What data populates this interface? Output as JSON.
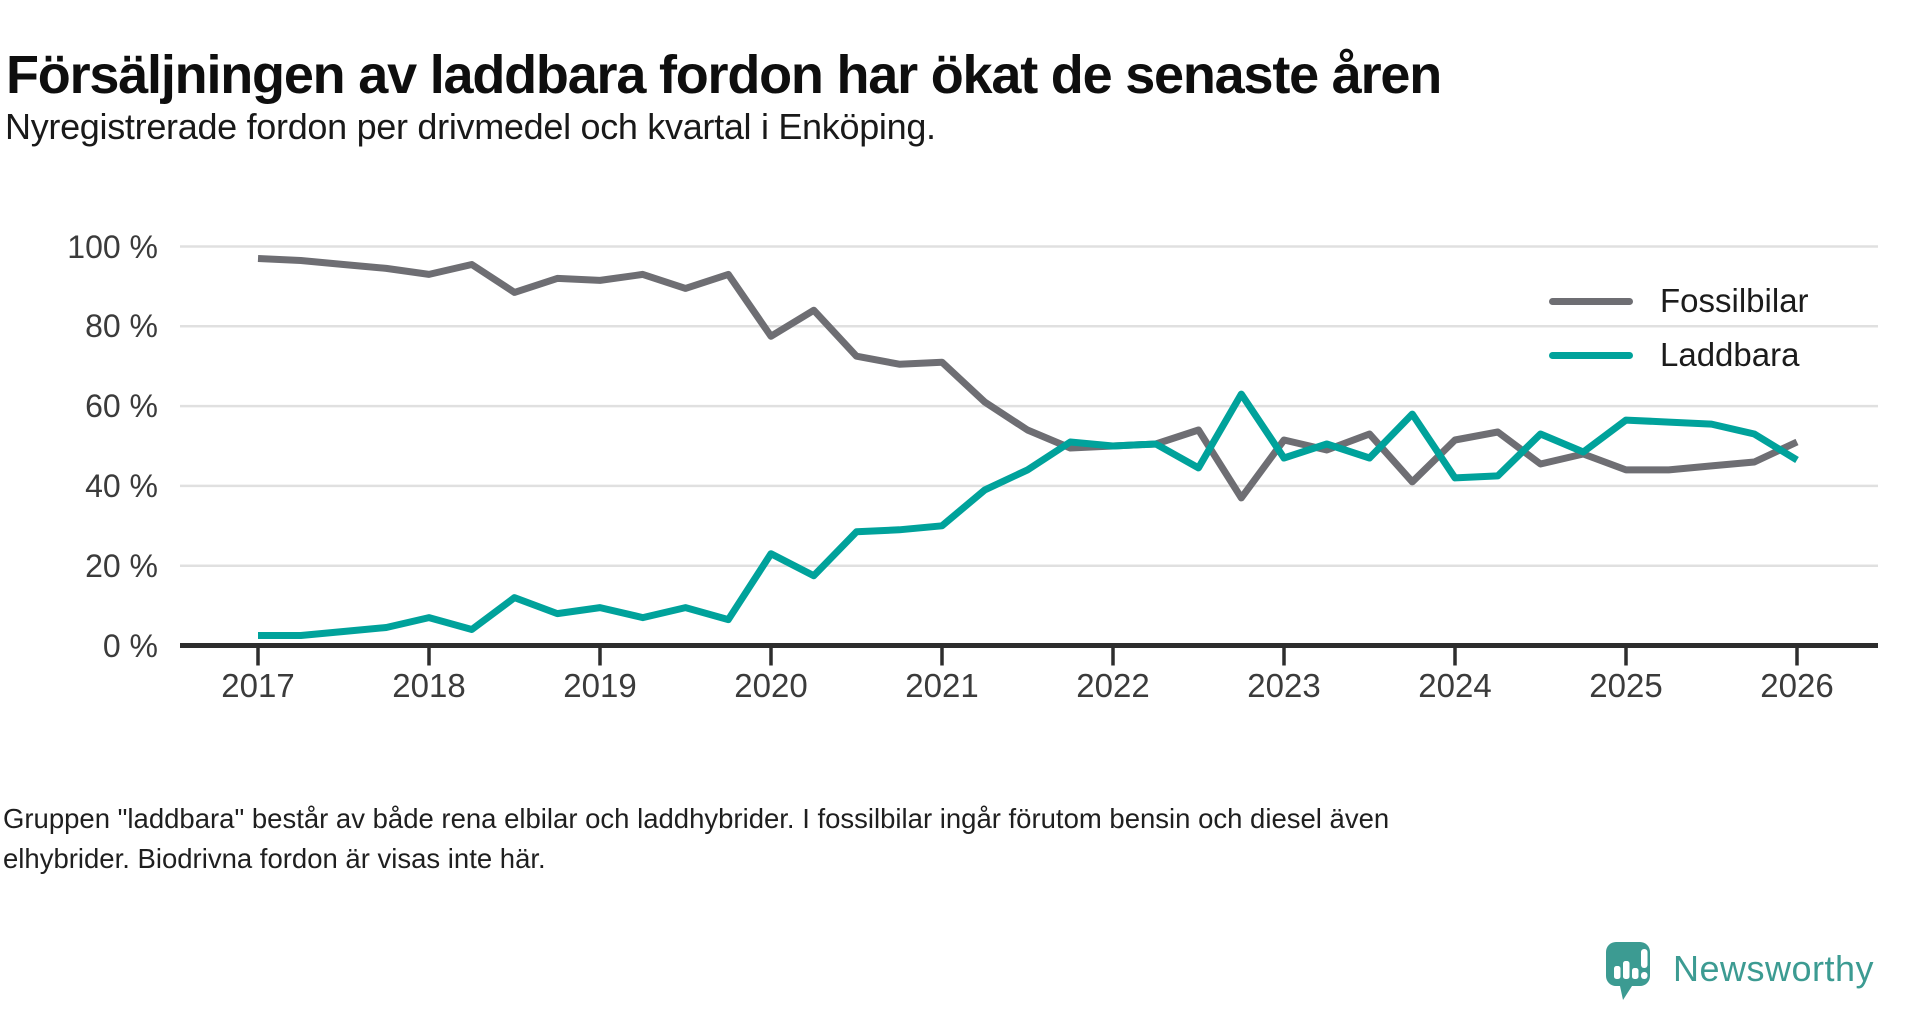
{
  "header": {
    "title": "Försäljningen av laddbara fordon har ökat de senaste åren",
    "subtitle": "Nyregistrerade fordon per drivmedel och kvartal i Enköping."
  },
  "chart_data": {
    "type": "line",
    "x_unit": "quarter",
    "x_start": "2017-Q1",
    "x_end": "2026-Q1",
    "x_tick_labels": [
      "2017",
      "2018",
      "2019",
      "2020",
      "2021",
      "2022",
      "2023",
      "2024",
      "2025",
      "2026"
    ],
    "y_tick_labels": [
      "0 %",
      "20 %",
      "40 %",
      "60 %",
      "80 %",
      "100 %"
    ],
    "ylim": [
      0,
      100
    ],
    "grid": "horizontal",
    "legend_position": "right",
    "series": [
      {
        "name": "Fossilbilar",
        "color": "#6e6e73",
        "values": [
          97,
          96.5,
          95.5,
          94.5,
          93,
          95.5,
          88.5,
          92,
          91.5,
          93,
          89.5,
          93,
          77.5,
          84,
          72.5,
          70.5,
          71,
          61,
          54,
          49.5,
          50,
          50.5,
          54,
          37,
          51.5,
          49,
          53,
          41,
          51.5,
          53.5,
          45.5,
          48,
          44,
          44,
          45,
          46,
          51
        ]
      },
      {
        "name": "Laddbara",
        "color": "#00a29b",
        "values": [
          2.5,
          2.5,
          3.5,
          4.5,
          7,
          4,
          12,
          8,
          9.5,
          7,
          9.5,
          6.5,
          23,
          17.5,
          28.5,
          29,
          30,
          39,
          44,
          51,
          50,
          50.5,
          44.5,
          63,
          47,
          50.5,
          47,
          58,
          42,
          42.5,
          53,
          48.5,
          56.5,
          56,
          55.5,
          53,
          46.5
        ]
      }
    ],
    "colors": {
      "gridline": "#e0e0e0",
      "axis": "#2d2d2d",
      "tick_text": "#3b3b3b"
    }
  },
  "footnote": {
    "lines": [
      "Gruppen \"laddbara\" består av både rena elbilar och laddhybrider. I fossilbilar ingår förutom bensin och diesel även",
      "elhybrider. Biodrivna fordon är visas inte här."
    ]
  },
  "brand": {
    "name": "Newsworthy",
    "color": "#3c9b92"
  }
}
